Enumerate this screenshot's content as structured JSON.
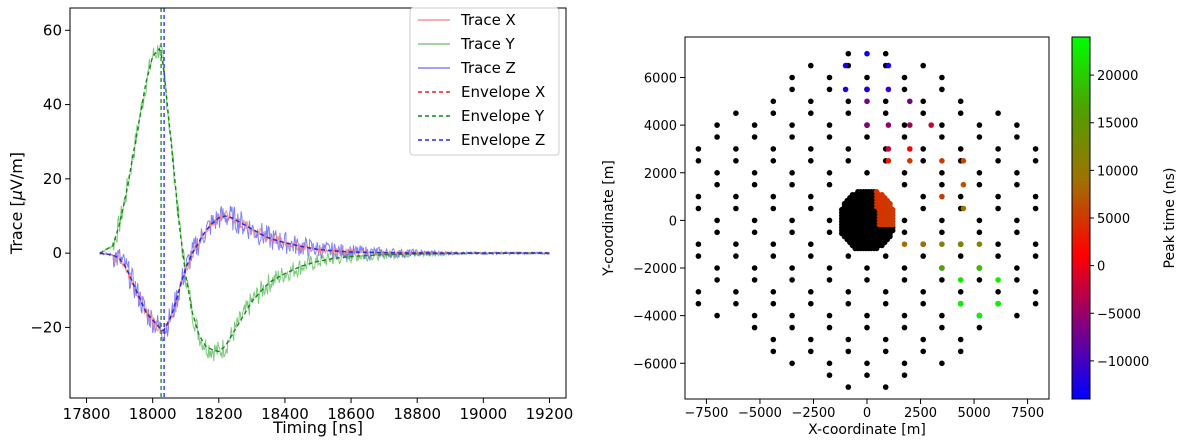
{
  "chart_data": [
    {
      "type": "line",
      "xlabel": "Timing [ns]",
      "ylabel_prefix": "Trace [",
      "ylabel_mu": "μ",
      "ylabel_suffix": "V/m]",
      "xlim": [
        17750,
        19250
      ],
      "ylim": [
        -39,
        66
      ],
      "xticks": [
        17800,
        18000,
        18200,
        18400,
        18600,
        18800,
        19000,
        19200
      ],
      "yticks": [
        -20,
        0,
        20,
        40,
        60
      ],
      "ytick_labels": [
        "−20",
        "0",
        "20",
        "40",
        "60"
      ],
      "peak_time_line": 18030,
      "legend_position": "top-right",
      "series": [
        {
          "name": "Trace X",
          "color": "#f08080",
          "style": "solid",
          "x": [
            17840,
            17880,
            17900,
            17920,
            17940,
            17960,
            17980,
            18000,
            18020,
            18030,
            18040,
            18060,
            18080,
            18100,
            18120,
            18140,
            18160,
            18180,
            18200,
            18220,
            18240,
            18260,
            18280,
            18300,
            18320,
            18340,
            18360,
            18400,
            18450,
            18500,
            18550,
            18600,
            18700,
            18800,
            18900,
            19000,
            19100,
            19200
          ],
          "y": [
            0,
            -0.5,
            -1.5,
            -4,
            -8,
            -12,
            -16,
            -18,
            -20,
            -21,
            -20,
            -16,
            -10,
            -4,
            0,
            3,
            6,
            8,
            9.5,
            10,
            9.5,
            8.5,
            7.5,
            6.5,
            5.5,
            4.5,
            3.8,
            2.8,
            1.8,
            1,
            0.6,
            0.3,
            0.1,
            0.05,
            0,
            0,
            0,
            0
          ]
        },
        {
          "name": "Trace Y",
          "color": "#6abf6a",
          "style": "solid",
          "x": [
            17840,
            17880,
            17900,
            17920,
            17940,
            17960,
            17980,
            18000,
            18020,
            18030,
            18040,
            18060,
            18080,
            18100,
            18120,
            18140,
            18160,
            18180,
            18200,
            18220,
            18240,
            18260,
            18280,
            18300,
            18320,
            18340,
            18360,
            18400,
            18450,
            18500,
            18550,
            18600,
            18700,
            18800,
            18900,
            19000,
            19100,
            19200
          ],
          "y": [
            0,
            2,
            8,
            16,
            26,
            36,
            46,
            53,
            55,
            52,
            44,
            26,
            8,
            -6,
            -16,
            -22,
            -25,
            -26,
            -26.5,
            -25,
            -22,
            -19,
            -16,
            -13,
            -11,
            -9,
            -7.5,
            -5.5,
            -3.5,
            -2.2,
            -1.4,
            -0.9,
            -0.4,
            -0.2,
            -0.1,
            0,
            0,
            0
          ]
        },
        {
          "name": "Trace Z",
          "color": "#6b6bf5",
          "style": "solid",
          "x": [
            17840,
            17880,
            17900,
            17920,
            17940,
            17960,
            17980,
            18000,
            18020,
            18030,
            18040,
            18060,
            18080,
            18100,
            18120,
            18140,
            18160,
            18180,
            18200,
            18220,
            18240,
            18260,
            18280,
            18300,
            18320,
            18340,
            18360,
            18400,
            18450,
            18500,
            18550,
            18600,
            18700,
            18800,
            18900,
            19000,
            19100,
            19200
          ],
          "y": [
            0,
            -0.5,
            -1.5,
            -4,
            -8,
            -12,
            -16,
            -18,
            -20,
            -21,
            -20,
            -16,
            -10,
            -4,
            0,
            3,
            6,
            8,
            9.5,
            10,
            9.5,
            8.5,
            7.5,
            6.5,
            5.5,
            4.5,
            3.8,
            2.8,
            1.8,
            1,
            0.6,
            0.3,
            0.1,
            0.05,
            0,
            0,
            0,
            0
          ]
        },
        {
          "name": "Envelope X",
          "color": "#e8241f",
          "style": "dashed",
          "x": [
            17840,
            17880,
            17900,
            17920,
            17940,
            17960,
            17980,
            18000,
            18020,
            18030,
            18040,
            18060,
            18080,
            18100,
            18120,
            18140,
            18160,
            18180,
            18200,
            18220,
            18240,
            18260,
            18280,
            18300,
            18320,
            18340,
            18360,
            18400,
            18450,
            18500,
            18550,
            18600,
            18700,
            18800,
            18900,
            19000,
            19100,
            19200
          ],
          "y": [
            0,
            -0.5,
            -1.5,
            -4,
            -8,
            -12,
            -16,
            -18,
            -20,
            -21,
            -20,
            -16,
            -10,
            -4,
            0,
            3,
            6,
            8,
            9.5,
            10,
            9.5,
            8.5,
            7.5,
            6.5,
            5.5,
            4.5,
            3.8,
            2.8,
            1.8,
            1,
            0.6,
            0.3,
            0.1,
            0.05,
            0,
            0,
            0,
            0
          ]
        },
        {
          "name": "Envelope Y",
          "color": "#118a11",
          "style": "dashed",
          "x": [
            17840,
            17880,
            17900,
            17920,
            17940,
            17960,
            17980,
            18000,
            18020,
            18030,
            18040,
            18060,
            18080,
            18100,
            18120,
            18140,
            18160,
            18180,
            18200,
            18220,
            18240,
            18260,
            18280,
            18300,
            18320,
            18340,
            18360,
            18400,
            18450,
            18500,
            18550,
            18600,
            18700,
            18800,
            18900,
            19000,
            19100,
            19200
          ],
          "y": [
            0,
            2,
            8,
            16,
            26,
            36,
            46,
            53,
            55,
            52,
            44,
            26,
            8,
            -6,
            -16,
            -22,
            -25,
            -26,
            -26.5,
            -25,
            -22,
            -19,
            -16,
            -13,
            -11,
            -9,
            -7.5,
            -5.5,
            -3.5,
            -2.2,
            -1.4,
            -0.9,
            -0.4,
            -0.2,
            -0.1,
            0,
            0,
            0
          ]
        },
        {
          "name": "Envelope Z",
          "color": "#1f2ee8",
          "style": "dashed",
          "x": [
            17840,
            17880,
            17900,
            17920,
            17940,
            17960,
            17980,
            18000,
            18020,
            18030,
            18040,
            18060,
            18080,
            18100,
            18120,
            18140,
            18160,
            18180,
            18200,
            18220,
            18240,
            18260,
            18280,
            18300,
            18320,
            18340,
            18360,
            18400,
            18450,
            18500,
            18550,
            18600,
            18700,
            18800,
            18900,
            19000,
            19100,
            19200
          ],
          "y": [
            0,
            -0.5,
            -1.5,
            -4,
            -8,
            -12,
            -16,
            -18,
            -20,
            -21,
            -20,
            -16,
            -10,
            -4,
            0,
            3,
            6,
            8,
            9.5,
            10,
            9.5,
            8.5,
            7.5,
            6.5,
            5.5,
            4.5,
            3.8,
            2.8,
            1.8,
            1,
            0.6,
            0.3,
            0.1,
            0.05,
            0,
            0,
            0,
            0
          ]
        }
      ],
      "noise_amplitude": {
        "Trace X": 1.5,
        "Trace Y": 3,
        "Trace Z": 3.5
      }
    },
    {
      "type": "scatter",
      "xlabel": "X-coordinate [m]",
      "ylabel": "Y-coordinate [m]",
      "colorbar_label": "Peak time (ns)",
      "xlim": [
        -8500,
        8500
      ],
      "ylim": [
        -7500,
        7700
      ],
      "xticks": [
        -7500,
        -5000,
        -2500,
        0,
        2500,
        5000,
        7500
      ],
      "xtick_labels": [
        "−7500",
        "−5000",
        "−2500",
        "0",
        "2500",
        "5000",
        "7500"
      ],
      "yticks": [
        -6000,
        -4000,
        -2000,
        0,
        2000,
        4000,
        6000
      ],
      "ytick_labels": [
        "−6000",
        "−4000",
        "−2000",
        "0",
        "2000",
        "4000",
        "6000"
      ],
      "colorbar_range": [
        -14000,
        24000
      ],
      "colorbar_ticks": [
        -10000,
        -5000,
        0,
        5000,
        10000,
        15000,
        20000
      ],
      "colorbar_tick_labels": [
        "−10000",
        "−5000",
        "0",
        "5000",
        "10000",
        "15000",
        "20000"
      ],
      "colormap_stops": [
        "#0000ff",
        "#800080",
        "#ff0000",
        "#a07000",
        "#50a000",
        "#00ff00"
      ],
      "no_signal_color": "#000000",
      "grid_spacing_x": 1000,
      "grid_spacing_y": 1000,
      "hex_radius": 7700,
      "dense_core_radius": 1300,
      "dense_core_spacing": 125,
      "colored_points": [
        {
          "x": 0,
          "y": 7000,
          "t": -13500
        },
        {
          "x": -1000,
          "y": 6500,
          "t": -12500
        },
        {
          "x": 1000,
          "y": 6500,
          "t": -12500
        },
        {
          "x": -1000,
          "y": 5500,
          "t": -12000
        },
        {
          "x": 0,
          "y": 5500,
          "t": -12000
        },
        {
          "x": 1000,
          "y": 5500,
          "t": -11000
        },
        {
          "x": 0,
          "y": 5000,
          "t": -7000
        },
        {
          "x": 2000,
          "y": 5000,
          "t": -7000
        },
        {
          "x": 0,
          "y": 4000,
          "t": -6000
        },
        {
          "x": 1000,
          "y": 4000,
          "t": -5000
        },
        {
          "x": 2000,
          "y": 4000,
          "t": -4000
        },
        {
          "x": 3000,
          "y": 4000,
          "t": -2000
        },
        {
          "x": 1000,
          "y": 3000,
          "t": -2000
        },
        {
          "x": 2000,
          "y": 3000,
          "t": 1000
        },
        {
          "x": 1000,
          "y": 2500,
          "t": 3000
        },
        {
          "x": 2000,
          "y": 2500,
          "t": 5000
        },
        {
          "x": 3500,
          "y": 2500,
          "t": 5000
        },
        {
          "x": 4500,
          "y": 2500,
          "t": 6000
        },
        {
          "x": 3500,
          "y": 1000,
          "t": 5000
        },
        {
          "x": 4500,
          "y": 1500,
          "t": 6500
        },
        {
          "x": 4500,
          "y": 500,
          "t": 9000
        },
        {
          "x": 1750,
          "y": -1000,
          "t": 9000
        },
        {
          "x": 2625,
          "y": -1000,
          "t": 9000
        },
        {
          "x": 3500,
          "y": -1000,
          "t": 11000
        },
        {
          "x": 4375,
          "y": -1000,
          "t": 12000
        },
        {
          "x": 5250,
          "y": -1000,
          "t": 12000
        },
        {
          "x": 3500,
          "y": -2000,
          "t": 17000
        },
        {
          "x": 4375,
          "y": -2500,
          "t": 22000
        },
        {
          "x": 5250,
          "y": -2000,
          "t": 19000
        },
        {
          "x": 6125,
          "y": -2500,
          "t": 23000
        },
        {
          "x": 4375,
          "y": -3500,
          "t": 23000
        },
        {
          "x": 5250,
          "y": -4000,
          "t": 23500
        },
        {
          "x": 6125,
          "y": -3500,
          "t": 23500
        }
      ]
    }
  ]
}
